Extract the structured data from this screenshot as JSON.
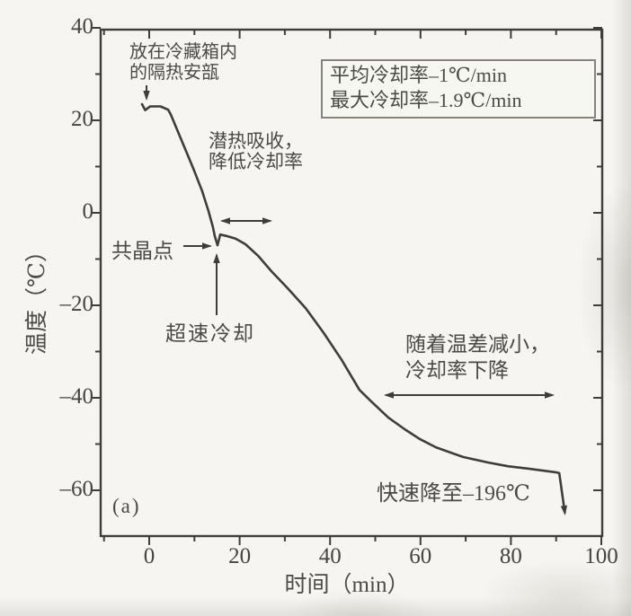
{
  "page": {
    "panel_label": "(a)"
  },
  "legend": {
    "lines": [
      "平均冷却率–1℃/min",
      "最大冷却率–1.9℃/min"
    ]
  },
  "annotations": {
    "ampoule_line1": "放在冷藏箱内",
    "ampoule_line2": "的隔热安瓿",
    "latent_line1": "潜热吸收，",
    "latent_line2": "降低冷却率",
    "eutectic": "共晶点",
    "supercool": "超速冷却",
    "tempdiff_line1": "随着温差减小，",
    "tempdiff_line2": "冷却率下降",
    "rapid": "快速降至–196℃"
  },
  "chart_data": {
    "type": "line",
    "title": "",
    "xlabel": "时间（min）",
    "ylabel": "温度（℃）",
    "xlim": [
      -11,
      100
    ],
    "ylim": [
      -70,
      40
    ],
    "grid": false,
    "legend_position": "top-right",
    "xticks": [
      0,
      20,
      40,
      60,
      80,
      100
    ],
    "xticks_minor": [
      -10,
      10,
      30,
      50,
      70,
      90
    ],
    "xticklabels": [
      "0",
      "20",
      "40",
      "60",
      "80",
      "100"
    ],
    "yticks": [
      40,
      20,
      0,
      -20,
      -40,
      -60
    ],
    "yticks_minor": [
      30,
      10,
      -10,
      -30,
      -50
    ],
    "yticklabels": [
      "40",
      "20",
      "0",
      "–20",
      "–40",
      "–60"
    ],
    "series": [
      {
        "name": "冷却曲线",
        "points": [
          [
            -1.6,
            23.5
          ],
          [
            -0.9,
            22.2
          ],
          [
            0.2,
            23.0
          ],
          [
            2.5,
            23.0
          ],
          [
            4.2,
            22.3
          ],
          [
            4.8,
            21.2
          ],
          [
            6.8,
            16.5
          ],
          [
            9.7,
            9.7
          ],
          [
            11.7,
            4.7
          ],
          [
            13.1,
            0.4
          ],
          [
            14.1,
            -3.1
          ],
          [
            14.5,
            -5.0
          ],
          [
            15.1,
            -7.0
          ],
          [
            15.7,
            -4.7
          ],
          [
            17.1,
            -5.0
          ],
          [
            19.1,
            -5.6
          ],
          [
            21.3,
            -6.8
          ],
          [
            24.1,
            -9.3
          ],
          [
            27.0,
            -12.6
          ],
          [
            30.6,
            -16.3
          ],
          [
            34.6,
            -20.6
          ],
          [
            38.6,
            -26.0
          ],
          [
            42.5,
            -31.7
          ],
          [
            46.5,
            -38.3
          ],
          [
            49.1,
            -40.8
          ],
          [
            52.9,
            -44.3
          ],
          [
            56.5,
            -46.8
          ],
          [
            59.8,
            -48.9
          ],
          [
            63.4,
            -50.7
          ],
          [
            69.4,
            -52.8
          ],
          [
            75.0,
            -54.0
          ],
          [
            79.3,
            -54.8
          ],
          [
            83.7,
            -55.3
          ],
          [
            89.9,
            -56.1
          ],
          [
            90.7,
            -56.3
          ],
          [
            91.9,
            -64.7
          ]
        ]
      }
    ],
    "key_points": {
      "eutectic_point": [
        15.1,
        -7.0
      ],
      "average_cooling_rate": "–1℃/min",
      "max_cooling_rate": "–1.9℃/min",
      "final_target": "–196℃"
    }
  }
}
